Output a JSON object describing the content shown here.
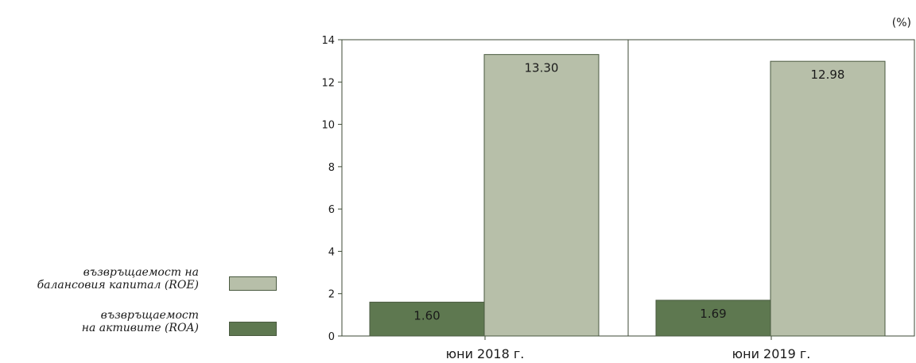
{
  "chart_data": {
    "type": "bar",
    "categories": [
      "юни 2018 г.",
      "юни 2019 г."
    ],
    "series": [
      {
        "name": "възвръщаемост на активите (ROA)",
        "values": [
          1.6,
          1.69
        ],
        "color": "#5e7850"
      },
      {
        "name": "възвръщаемост на балансовия капитал (ROE)",
        "values": [
          13.3,
          12.98
        ],
        "color": "#b7bfa9"
      }
    ],
    "data_labels": [
      [
        "1.60",
        "1.69"
      ],
      [
        "13.30",
        "12.98"
      ]
    ],
    "ylim": [
      0,
      14
    ],
    "yticks": [
      0,
      2,
      4,
      6,
      8,
      10,
      12,
      14
    ],
    "unit": "(%)",
    "grid": false,
    "legend_position": "left"
  },
  "legend": {
    "roe_line1": "възвръщаемост на",
    "roe_line2": "балансовия капитал (ROE)",
    "roa_line1": "възвръщаемост",
    "roa_line2": "на активите (ROA)"
  }
}
